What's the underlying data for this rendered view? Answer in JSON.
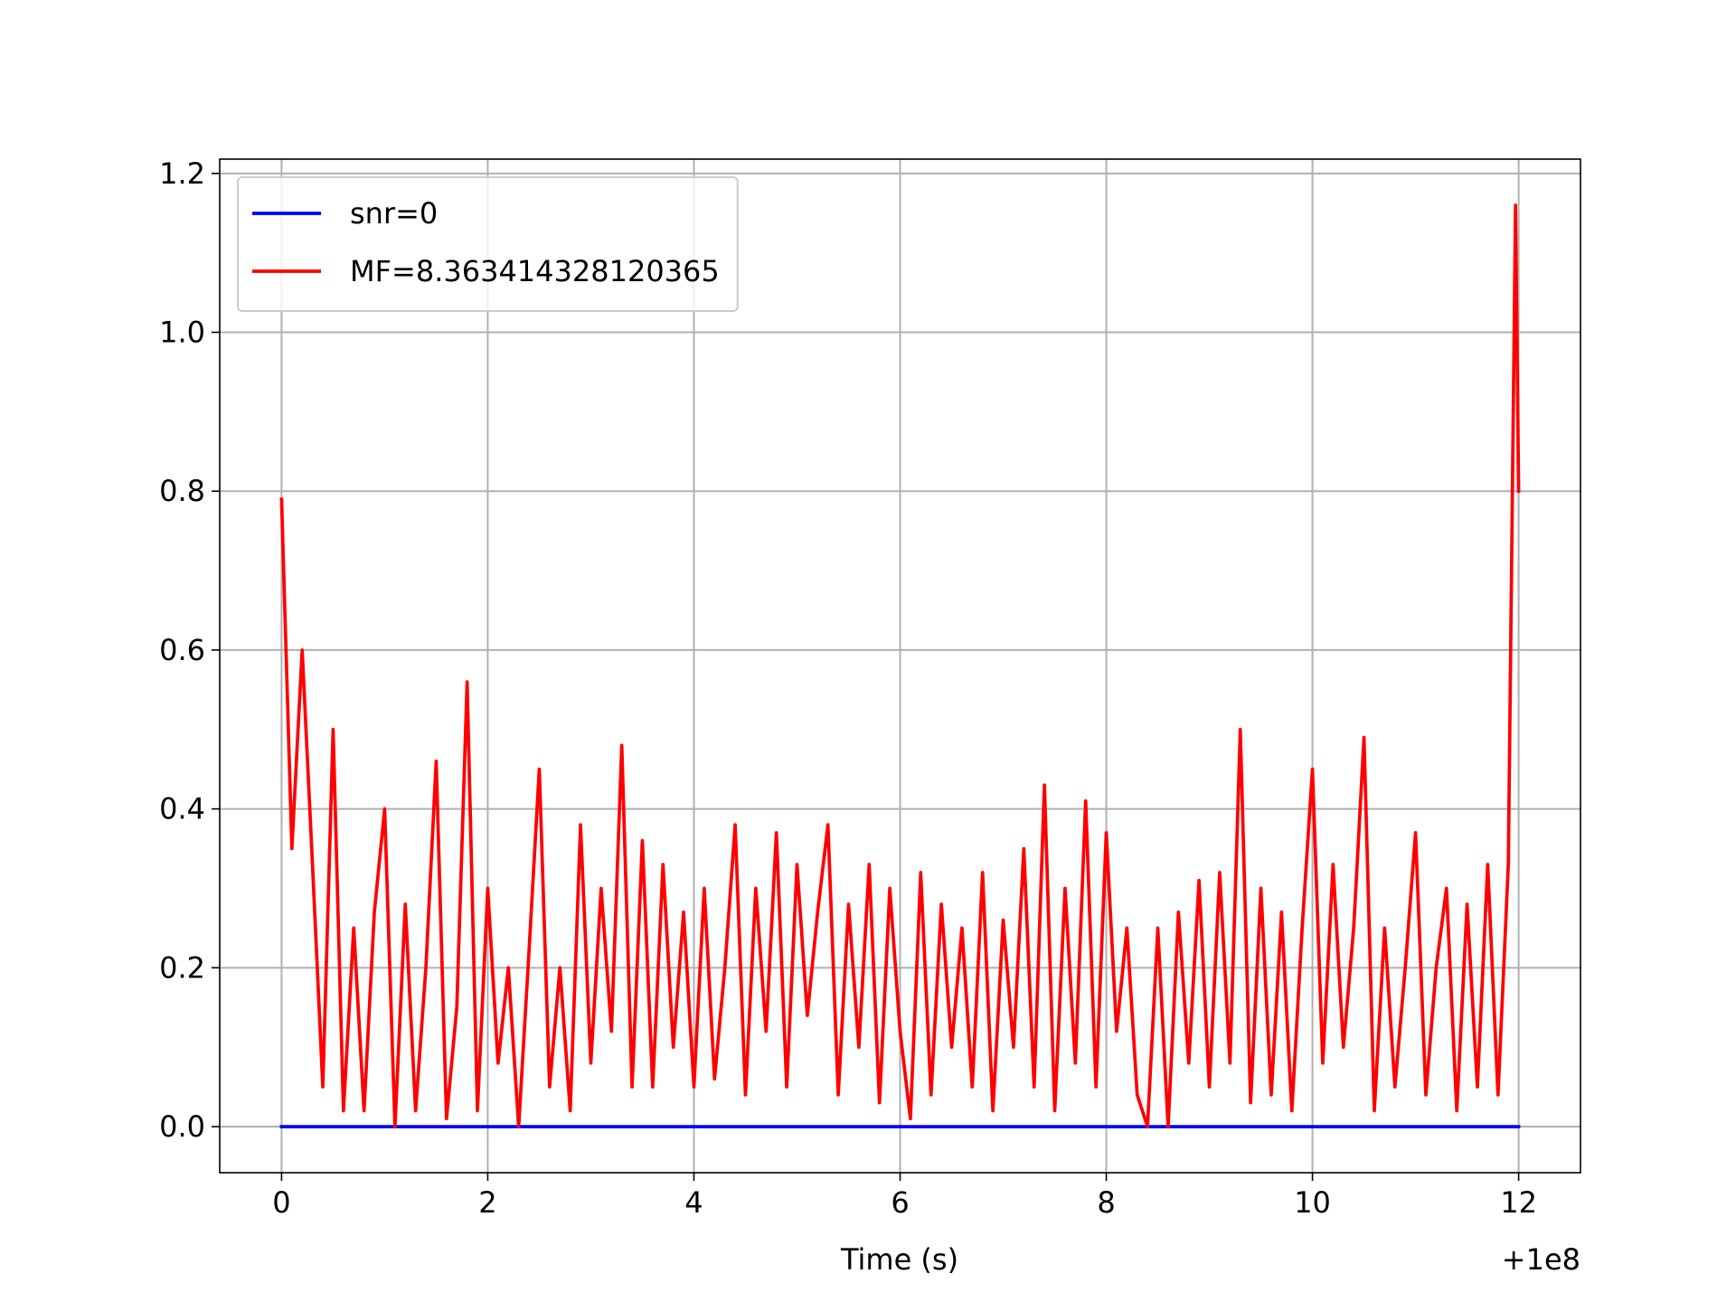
{
  "chart_data": {
    "type": "line",
    "xlabel": "Time (s)",
    "x_offset_text": "+1e8",
    "xlim": [
      -0.6,
      12.6
    ],
    "xticks": [
      0,
      2,
      4,
      6,
      8,
      10,
      12
    ],
    "ylim": [
      -0.058,
      1.218
    ],
    "yticks": [
      {
        "value": 0,
        "label": "0.0"
      },
      0.2,
      0.4,
      0.6,
      0.8,
      {
        "value": 1,
        "label": "1.0"
      },
      1.2
    ],
    "grid": true,
    "legend": "upper left",
    "series": [
      {
        "name": "snr=0",
        "color": "#0000ff",
        "x": [
          0,
          12
        ],
        "values": [
          0,
          0
        ]
      },
      {
        "name": "MF=8.363414328120365",
        "color": "#ff0000",
        "x": [
          0,
          0.1,
          0.2,
          0.3,
          0.4,
          0.5,
          0.6,
          0.7,
          0.8,
          0.9,
          1.0,
          1.1,
          1.2,
          1.3,
          1.4,
          1.5,
          1.6,
          1.7,
          1.8,
          1.9,
          2.0,
          2.1,
          2.2,
          2.3,
          2.4,
          2.5,
          2.6,
          2.7,
          2.8,
          2.9,
          3.0,
          3.1,
          3.2,
          3.3,
          3.4,
          3.5,
          3.6,
          3.7,
          3.8,
          3.9,
          4.0,
          4.1,
          4.2,
          4.3,
          4.4,
          4.5,
          4.6,
          4.7,
          4.8,
          4.9,
          5.0,
          5.1,
          5.2,
          5.3,
          5.4,
          5.5,
          5.6,
          5.7,
          5.8,
          5.9,
          6.0,
          6.1,
          6.2,
          6.3,
          6.4,
          6.5,
          6.6,
          6.7,
          6.8,
          6.9,
          7.0,
          7.1,
          7.2,
          7.3,
          7.4,
          7.5,
          7.6,
          7.7,
          7.8,
          7.9,
          8.0,
          8.1,
          8.2,
          8.3,
          8.4,
          8.5,
          8.6,
          8.7,
          8.8,
          8.9,
          9.0,
          9.1,
          9.2,
          9.3,
          9.4,
          9.5,
          9.6,
          9.7,
          9.8,
          9.9,
          10.0,
          10.1,
          10.2,
          10.3,
          10.4,
          10.5,
          10.6,
          10.7,
          10.8,
          10.9,
          11.0,
          11.1,
          11.2,
          11.3,
          11.4,
          11.5,
          11.6,
          11.7,
          11.8,
          11.9,
          11.97,
          12.0
        ],
        "values": [
          0.79,
          0.35,
          0.6,
          0.33,
          0.05,
          0.5,
          0.02,
          0.25,
          0.02,
          0.27,
          0.4,
          0.0,
          0.28,
          0.02,
          0.2,
          0.46,
          0.01,
          0.15,
          0.56,
          0.02,
          0.3,
          0.08,
          0.2,
          0.0,
          0.22,
          0.45,
          0.05,
          0.2,
          0.02,
          0.38,
          0.08,
          0.3,
          0.12,
          0.48,
          0.05,
          0.36,
          0.05,
          0.33,
          0.1,
          0.27,
          0.05,
          0.3,
          0.06,
          0.2,
          0.38,
          0.04,
          0.3,
          0.12,
          0.37,
          0.05,
          0.33,
          0.14,
          0.27,
          0.38,
          0.04,
          0.28,
          0.1,
          0.33,
          0.03,
          0.3,
          0.12,
          0.01,
          0.32,
          0.04,
          0.28,
          0.1,
          0.25,
          0.05,
          0.32,
          0.02,
          0.26,
          0.1,
          0.35,
          0.05,
          0.43,
          0.02,
          0.3,
          0.08,
          0.41,
          0.05,
          0.37,
          0.12,
          0.25,
          0.04,
          0.0,
          0.25,
          0.0,
          0.27,
          0.08,
          0.31,
          0.05,
          0.32,
          0.08,
          0.5,
          0.03,
          0.3,
          0.04,
          0.27,
          0.02,
          0.25,
          0.45,
          0.08,
          0.33,
          0.1,
          0.25,
          0.49,
          0.02,
          0.25,
          0.05,
          0.2,
          0.37,
          0.04,
          0.2,
          0.3,
          0.02,
          0.28,
          0.05,
          0.33,
          0.04,
          0.33,
          1.16,
          0.8
        ]
      }
    ]
  }
}
